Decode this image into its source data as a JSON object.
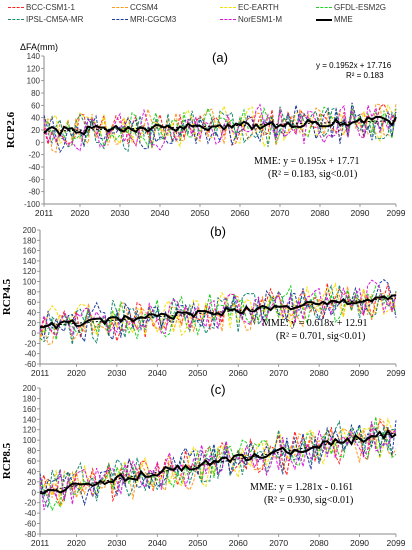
{
  "legend": [
    {
      "name": "BCC-CSM1-1",
      "color": "#ff2020"
    },
    {
      "name": "CCSM4",
      "color": "#ff9a20"
    },
    {
      "name": "EC-EARTH",
      "color": "#f3e000"
    },
    {
      "name": "GFDL-ESM2G",
      "color": "#20d020"
    },
    {
      "name": "IPSL-CM5A-MR",
      "color": "#1a8a70"
    },
    {
      "name": "MRI-CGCM3",
      "color": "#203a9a"
    },
    {
      "name": "NorESM1-M",
      "color": "#d81ad8"
    },
    {
      "name": "MME",
      "color": "#000000"
    }
  ],
  "chart_data": [
    {
      "type": "line",
      "panel_label": "(a)",
      "scenario": "RCP2.6",
      "ylabel": "ΔFA(mm)",
      "ylim": [
        -100,
        140
      ],
      "yticks": [
        -100,
        -80,
        -60,
        -40,
        -20,
        0,
        20,
        40,
        60,
        80,
        100,
        120,
        140
      ],
      "xlim": [
        2011,
        2099
      ],
      "xticks": [
        2011,
        2020,
        2030,
        2040,
        2050,
        2060,
        2070,
        2080,
        2090,
        2099
      ],
      "models_trend": {
        "start": 16,
        "end": 34,
        "amplitude": 28,
        "seed": 11
      },
      "mme": {
        "slope": 0.195,
        "intercept": 17.71,
        "wobble": 7
      },
      "equation_top": "y = 0.1952x + 17.716",
      "r2_top": "R² = 0.183",
      "annotation_line1": "MME:  y = 0.195x + 17.71",
      "annotation_line2": "(R² = 0.183, sig<0.01)"
    },
    {
      "type": "line",
      "panel_label": "(b)",
      "scenario": "RCP4.5",
      "ylabel": "",
      "ylim": [
        -60,
        200
      ],
      "yticks": [
        -60,
        -40,
        -20,
        0,
        20,
        40,
        60,
        80,
        100,
        120,
        140,
        160,
        180,
        200
      ],
      "xlim": [
        2011,
        2099
      ],
      "xticks": [
        2011,
        2020,
        2030,
        2040,
        2050,
        2060,
        2070,
        2080,
        2090,
        2099
      ],
      "models_trend": {
        "start": 12,
        "end": 66,
        "amplitude": 34,
        "seed": 23
      },
      "mme": {
        "slope": 0.618,
        "intercept": 12.91,
        "wobble": 7
      },
      "equation_top": "",
      "r2_top": "",
      "annotation_line1": "MME:  y = 0.618x + 12.91",
      "annotation_line2": "(R² = 0.701, sig<0.01)"
    },
    {
      "type": "line",
      "panel_label": "(c)",
      "scenario": "RCP8.5",
      "ylabel": "",
      "ylim": [
        -80,
        200
      ],
      "yticks": [
        -80,
        -60,
        -40,
        -20,
        0,
        20,
        40,
        60,
        80,
        100,
        120,
        140,
        160,
        180,
        200
      ],
      "xlim": [
        2011,
        2099
      ],
      "xticks": [
        2011,
        2020,
        2030,
        2040,
        2050,
        2060,
        2070,
        2080,
        2090,
        2099
      ],
      "models_trend": {
        "start": 2,
        "end": 112,
        "amplitude": 36,
        "seed": 37
      },
      "mme": {
        "slope": 1.281,
        "intercept": -0.161,
        "wobble": 8
      },
      "equation_top": "",
      "r2_top": "",
      "annotation_line1": "MME:  y = 1.281x - 0.161",
      "annotation_line2": "(R² = 0.930, sig<0.01)"
    }
  ]
}
